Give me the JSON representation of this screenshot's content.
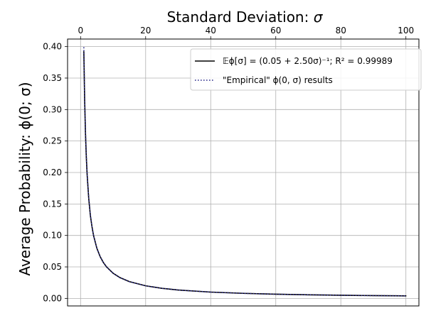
{
  "chart_data": {
    "type": "line",
    "title": "",
    "xlabel": "Standard Deviation: σ",
    "xlabel_math": "σ",
    "xlabel_prefix": "Standard Deviation: ",
    "ylabel": "Average Probability: ϕ(0; σ)",
    "xaxis_position": "top",
    "xlim": [
      -4,
      104
    ],
    "ylim": [
      -0.012,
      0.412
    ],
    "xticks": [
      0,
      20,
      40,
      60,
      80,
      100
    ],
    "xtick_labels": [
      "0",
      "20",
      "40",
      "60",
      "80",
      "100"
    ],
    "yticks": [
      0.0,
      0.05,
      0.1,
      0.15,
      0.2,
      0.25,
      0.3,
      0.35,
      0.4
    ],
    "ytick_labels": [
      "0.00",
      "0.05",
      "0.10",
      "0.15",
      "0.20",
      "0.25",
      "0.30",
      "0.35",
      "0.40"
    ],
    "grid": true,
    "legend_position": "top-right",
    "series": [
      {
        "name": "𝔼ϕ[σ] = (0.05 + 2.50σ)⁻¹; R² = 0.99989",
        "style": "solid",
        "color": "#000000",
        "x": [
          1,
          1.25,
          1.5,
          1.75,
          2,
          2.5,
          3,
          3.5,
          4,
          5,
          6,
          7,
          8,
          10,
          12,
          15,
          20,
          25,
          30,
          40,
          50,
          60,
          70,
          80,
          90,
          100
        ],
        "y": [
          0.392,
          0.315,
          0.263,
          0.226,
          0.198,
          0.159,
          0.132,
          0.114,
          0.0995,
          0.0797,
          0.0665,
          0.057,
          0.0499,
          0.0399,
          0.0333,
          0.0266,
          0.02,
          0.016,
          0.0133,
          0.01,
          0.008,
          0.0067,
          0.0057,
          0.005,
          0.0044,
          0.004
        ]
      },
      {
        "name": "\"Empirical\" ϕ(0, σ) results",
        "style": "dotted",
        "color": "#2b2b8c",
        "x": [
          1,
          1.25,
          1.5,
          1.75,
          2,
          2.5,
          3,
          3.5,
          4,
          5,
          6,
          7,
          8,
          10,
          12,
          15,
          20,
          25,
          30,
          40,
          50,
          60,
          70,
          80,
          90,
          100
        ],
        "y": [
          0.399,
          0.319,
          0.266,
          0.228,
          0.1995,
          0.16,
          0.133,
          0.114,
          0.0997,
          0.0798,
          0.0665,
          0.057,
          0.0499,
          0.0399,
          0.0332,
          0.0266,
          0.0199,
          0.016,
          0.0133,
          0.01,
          0.008,
          0.0066,
          0.0057,
          0.005,
          0.0044,
          0.004
        ]
      }
    ]
  }
}
